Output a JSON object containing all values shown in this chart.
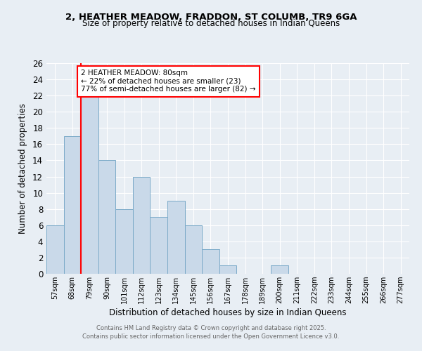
{
  "title_line1": "2, HEATHER MEADOW, FRADDON, ST COLUMB, TR9 6GA",
  "title_line2": "Size of property relative to detached houses in Indian Queens",
  "xlabel": "Distribution of detached houses by size in Indian Queens",
  "ylabel": "Number of detached properties",
  "categories": [
    "57sqm",
    "68sqm",
    "79sqm",
    "90sqm",
    "101sqm",
    "112sqm",
    "123sqm",
    "134sqm",
    "145sqm",
    "156sqm",
    "167sqm",
    "178sqm",
    "189sqm",
    "200sqm",
    "211sqm",
    "222sqm",
    "233sqm",
    "244sqm",
    "255sqm",
    "266sqm",
    "277sqm"
  ],
  "values": [
    6,
    17,
    22,
    14,
    8,
    12,
    7,
    9,
    6,
    3,
    1,
    0,
    0,
    1,
    0,
    0,
    0,
    0,
    0,
    0,
    0
  ],
  "bar_color": "#c9d9e9",
  "bar_edge_color": "#7baac8",
  "red_line_index": 1.5,
  "annotation_text": "2 HEATHER MEADOW: 80sqm\n← 22% of detached houses are smaller (23)\n77% of semi-detached houses are larger (82) →",
  "annotation_box_color": "white",
  "annotation_border_color": "red",
  "ylim": [
    0,
    26
  ],
  "yticks": [
    0,
    2,
    4,
    6,
    8,
    10,
    12,
    14,
    16,
    18,
    20,
    22,
    24,
    26
  ],
  "background_color": "#e8eef4",
  "grid_color": "#ffffff",
  "footer_line1": "Contains HM Land Registry data © Crown copyright and database right 2025.",
  "footer_line2": "Contains public sector information licensed under the Open Government Licence v3.0."
}
